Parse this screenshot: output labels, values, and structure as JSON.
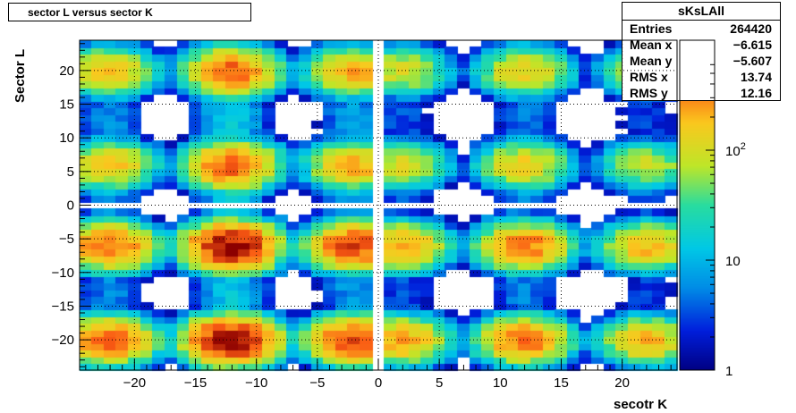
{
  "chart_data": {
    "type": "heatmap",
    "title": "sector L versus sector K",
    "xlabel": "secotr K",
    "ylabel": "Sector L",
    "xlim": [
      -24.5,
      24.5
    ],
    "ylim": [
      -24.5,
      24.5
    ],
    "x_ticks": [
      -20,
      -15,
      -10,
      -5,
      0,
      5,
      10,
      15,
      20
    ],
    "y_ticks": [
      -20,
      -15,
      -10,
      -5,
      0,
      5,
      10,
      15,
      20
    ],
    "grid": true,
    "color_scale": "log",
    "z_range": [
      1,
      1000
    ],
    "colorbar_ticks": [
      {
        "value": 1,
        "label": "1"
      },
      {
        "value": 10,
        "label": "10"
      },
      {
        "value": 100,
        "label": "10",
        "exponent": "2"
      }
    ],
    "cluster_centers_k": [
      -22,
      -12,
      -2,
      2,
      12,
      22
    ],
    "cluster_centers_l": [
      -20,
      -6,
      6,
      20
    ],
    "cluster_peaks": {
      "k": [
        {
          "k": -22,
          "peak": 400
        },
        {
          "k": -12,
          "peak": 900
        },
        {
          "k": -2,
          "peak": 500
        },
        {
          "k": 2,
          "peak": 250
        },
        {
          "k": 12,
          "peak": 350
        },
        {
          "k": 22,
          "peak": 200
        }
      ],
      "l_weight": [
        {
          "l": -20,
          "weight": 1.0
        },
        {
          "l": -6,
          "weight": 1.0
        },
        {
          "l": 6,
          "weight": 0.45
        },
        {
          "l": 20,
          "weight": 0.45
        }
      ]
    },
    "empty_bins": {
      "k": [
        0
      ],
      "l": [
        0
      ]
    },
    "stats": {
      "name": "sKsLAll",
      "entries": "264420",
      "mean_x": "−6.615",
      "mean_y": "−5.607",
      "rms_x": "13.74",
      "rms_y": "12.16"
    }
  },
  "stats_labels": {
    "entries": "Entries",
    "mean_x": "Mean x",
    "mean_y": "Mean y",
    "rms_x": "RMS x",
    "rms_y": "RMS y"
  }
}
